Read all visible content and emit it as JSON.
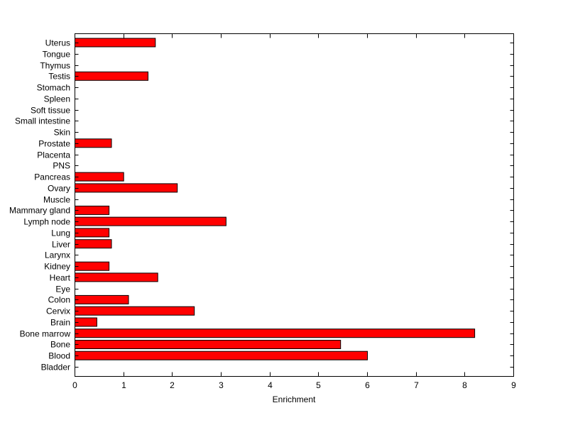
{
  "figure": {
    "background": "#ffffff"
  },
  "chart_data": {
    "type": "bar",
    "orientation": "horizontal",
    "title": "",
    "xlabel": "Enrichment",
    "ylabel": "",
    "xlim": [
      0,
      9
    ],
    "xticks": [
      0,
      1,
      2,
      3,
      4,
      5,
      6,
      7,
      8,
      9
    ],
    "grid": false,
    "legend": null,
    "bar_color": "#ff0000",
    "bar_edge_color": "#000000",
    "axis_color": "#000000",
    "categories_top_to_bottom": [
      "Uterus",
      "Tongue",
      "Thymus",
      "Testis",
      "Stomach",
      "Spleen",
      "Soft tissue",
      "Small intestine",
      "Skin",
      "Prostate",
      "Placenta",
      "PNS",
      "Pancreas",
      "Ovary",
      "Muscle",
      "Mammary gland",
      "Lymph node",
      "Lung",
      "Liver",
      "Larynx",
      "Kidney",
      "Heart",
      "Eye",
      "Colon",
      "Cervix",
      "Brain",
      "Bone marrow",
      "Bone",
      "Blood",
      "Bladder"
    ],
    "values_top_to_bottom": [
      1.65,
      0,
      0,
      1.5,
      0,
      0,
      0,
      0,
      0,
      0.75,
      0,
      0,
      1.0,
      2.1,
      0,
      0.7,
      3.1,
      0.7,
      0.75,
      0,
      0.7,
      1.7,
      0,
      1.1,
      2.45,
      0.45,
      8.2,
      5.45,
      6.0,
      0
    ]
  }
}
